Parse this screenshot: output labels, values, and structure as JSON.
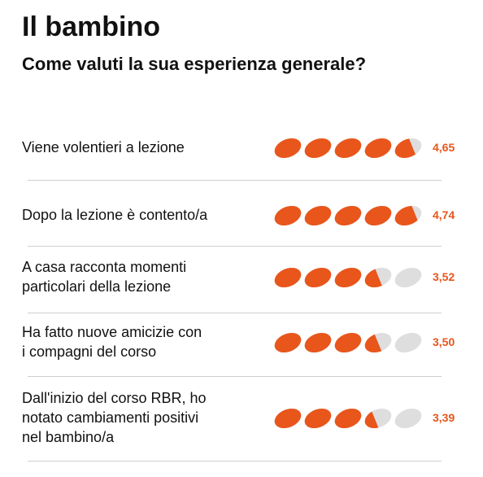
{
  "header": {
    "title": "Il bambino",
    "subtitle": "Come valuti la sua esperienza generale?"
  },
  "colors": {
    "accent": "#e8561c",
    "empty": "#dedede",
    "separator": "#cfcfcf"
  },
  "chart_data": {
    "type": "rating",
    "scale_max": 5,
    "items": [
      {
        "label_lines": [
          "Viene volentieri a lezione"
        ],
        "value": 4.65,
        "value_label": "4,65"
      },
      {
        "label_lines": [
          "Dopo la lezione è contento/a"
        ],
        "value": 4.74,
        "value_label": "4,74"
      },
      {
        "label_lines": [
          "A casa racconta momenti",
          "particolari della lezione"
        ],
        "value": 3.52,
        "value_label": "3,52"
      },
      {
        "label_lines": [
          "Ha fatto nuove amicizie con",
          "i compagni del corso"
        ],
        "value": 3.5,
        "value_label": "3,50"
      },
      {
        "label_lines": [
          "Dall'inizio del corso RBR, ho",
          "notato cambiamenti positivi",
          "nel bambino/a"
        ],
        "value": 3.39,
        "value_label": "3,39"
      }
    ]
  }
}
